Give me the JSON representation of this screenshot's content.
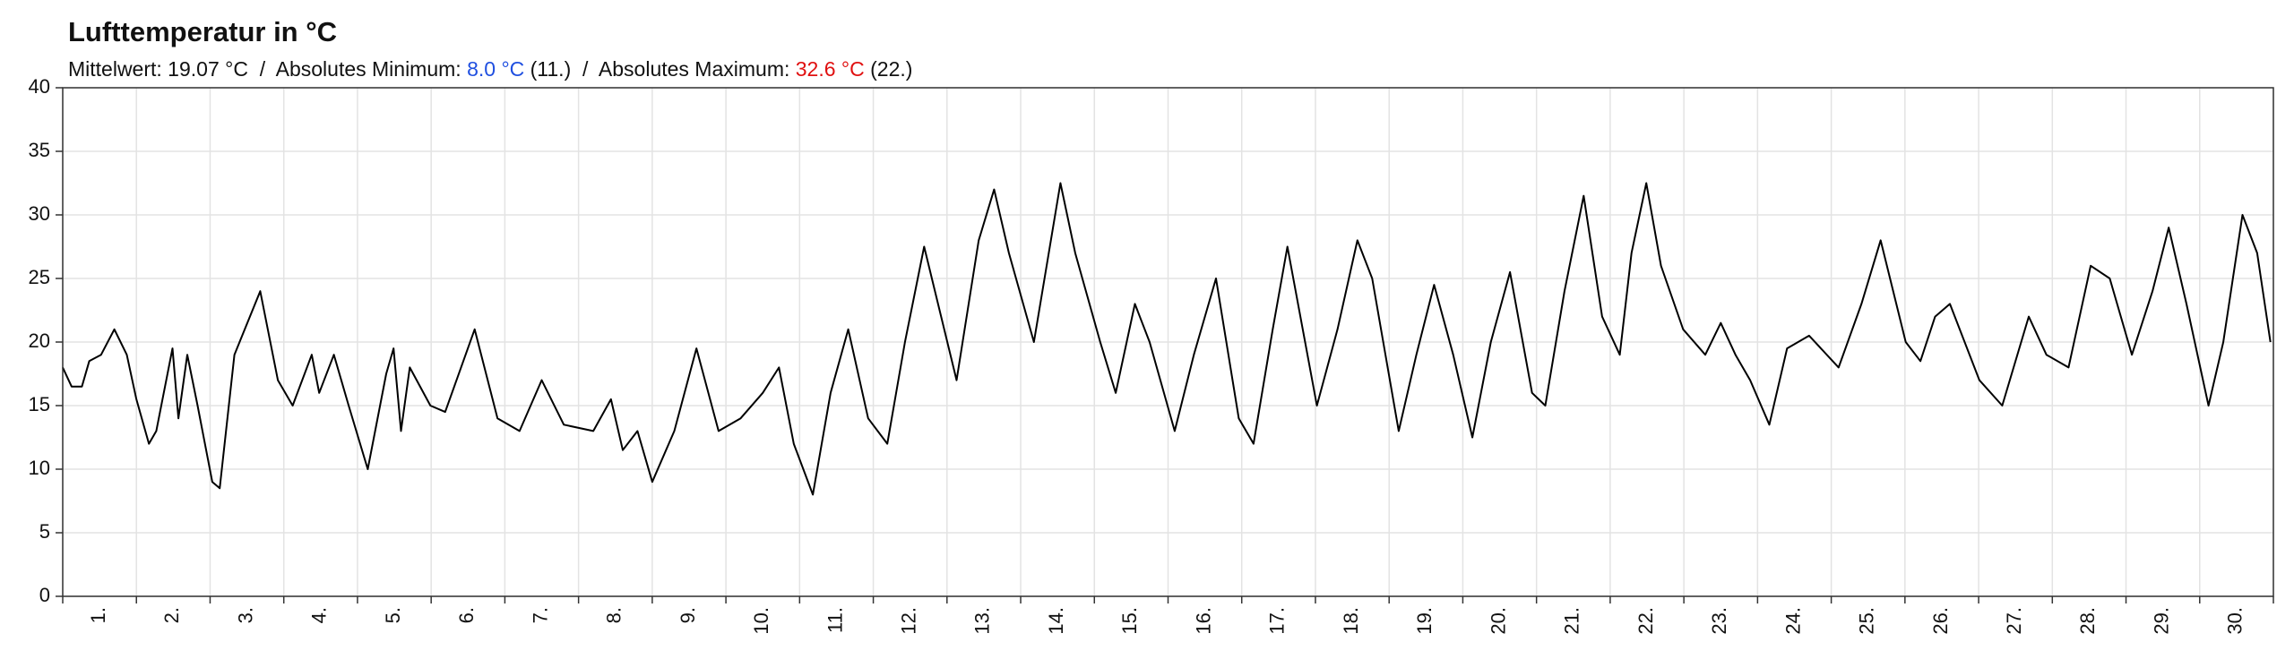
{
  "chart_data": {
    "type": "line",
    "title": "Lufttemperatur in °C",
    "subtitle": [
      {
        "text": "Mittelwert: 19.07 °C  /  Absolutes Minimum: "
      },
      {
        "text": "8.0 °C",
        "color": "#1f4fe0"
      },
      {
        "text": " (11.)  /  Absolutes Maximum: "
      },
      {
        "text": "32.6 °C",
        "color": "#e01010"
      },
      {
        "text": " (22.)"
      }
    ],
    "categories": [
      "1.",
      "2.",
      "3.",
      "4.",
      "5.",
      "6.",
      "7.",
      "8.",
      "9.",
      "10.",
      "11.",
      "12.",
      "13.",
      "14.",
      "15.",
      "16.",
      "17.",
      "18.",
      "19.",
      "20.",
      "21.",
      "22.",
      "23.",
      "24.",
      "25.",
      "26.",
      "27.",
      "28.",
      "29.",
      "30."
    ],
    "xlim": [
      0,
      30
    ],
    "xticks": [
      0,
      1,
      2,
      3,
      4,
      5,
      6,
      7,
      8,
      9,
      10,
      11,
      12,
      13,
      14,
      15,
      16,
      17,
      18,
      19,
      20,
      21,
      22,
      23,
      24,
      25,
      26,
      27,
      28,
      29,
      30
    ],
    "ylim": [
      0,
      40
    ],
    "yticks": [
      0,
      5,
      10,
      15,
      20,
      25,
      30,
      35,
      40
    ],
    "grid": true,
    "series": [
      {
        "color": "#000000",
        "x": [
          0,
          0.12,
          0.26,
          0.36,
          0.52,
          0.7,
          0.87,
          1.0,
          1.17,
          1.27,
          1.49,
          1.57,
          1.69,
          1.83,
          2.03,
          2.13,
          2.33,
          2.68,
          2.92,
          3.12,
          3.38,
          3.48,
          3.68,
          3.88,
          4.14,
          4.39,
          4.49,
          4.59,
          4.71,
          4.99,
          5.19,
          5.59,
          5.9,
          6.2,
          6.5,
          6.8,
          7.2,
          7.44,
          7.6,
          7.8,
          8.0,
          8.3,
          8.6,
          8.9,
          9.2,
          9.5,
          9.72,
          9.92,
          10.18,
          10.42,
          10.66,
          10.93,
          11.19,
          11.43,
          11.69,
          12.13,
          12.43,
          12.64,
          12.84,
          13.18,
          13.54,
          13.74,
          14.08,
          14.29,
          14.55,
          14.75,
          15.09,
          15.35,
          15.65,
          15.96,
          16.16,
          16.42,
          16.62,
          17.02,
          17.3,
          17.57,
          17.77,
          18.13,
          18.37,
          18.61,
          18.87,
          19.13,
          19.38,
          19.64,
          19.94,
          20.12,
          20.38,
          20.64,
          20.89,
          21.13,
          21.29,
          21.49,
          21.69,
          21.99,
          22.29,
          22.5,
          22.7,
          22.9,
          23.16,
          23.4,
          23.7,
          24.1,
          24.41,
          24.67,
          25.01,
          25.21,
          25.41,
          25.61,
          26.01,
          26.32,
          26.68,
          26.92,
          27.22,
          27.52,
          27.78,
          28.08,
          28.36,
          28.58,
          28.82,
          29.12,
          29.32,
          29.58,
          29.78,
          29.96
        ],
        "values": [
          18,
          16.5,
          16.5,
          18.5,
          19,
          21,
          19,
          15.5,
          12,
          13,
          19.5,
          14,
          19,
          15,
          9,
          8.5,
          19,
          24,
          17,
          15,
          19,
          16,
          19,
          15,
          10,
          17.5,
          19.5,
          13,
          18,
          15,
          14.5,
          21,
          14,
          13,
          17,
          13.5,
          13,
          15.5,
          11.5,
          13,
          9,
          13,
          19.5,
          13,
          14,
          16,
          18,
          12,
          8,
          16,
          21,
          14,
          12,
          20,
          27.5,
          17,
          28,
          32,
          27,
          20,
          32.5,
          27,
          20,
          16,
          23,
          20,
          13,
          19,
          25,
          14,
          12,
          21,
          27.5,
          15,
          21,
          28,
          25,
          13,
          19,
          24.5,
          19,
          12.5,
          20,
          25.5,
          16,
          15,
          24,
          31.5,
          22,
          19,
          27,
          32.5,
          26,
          21,
          19,
          21.5,
          19,
          17,
          13.5,
          19.5,
          20.5,
          18,
          23,
          28,
          20,
          18.5,
          22,
          23,
          17,
          15,
          22,
          19,
          18,
          26,
          25,
          19,
          24,
          29,
          23,
          15,
          20,
          30,
          27,
          20
        ]
      }
    ]
  }
}
